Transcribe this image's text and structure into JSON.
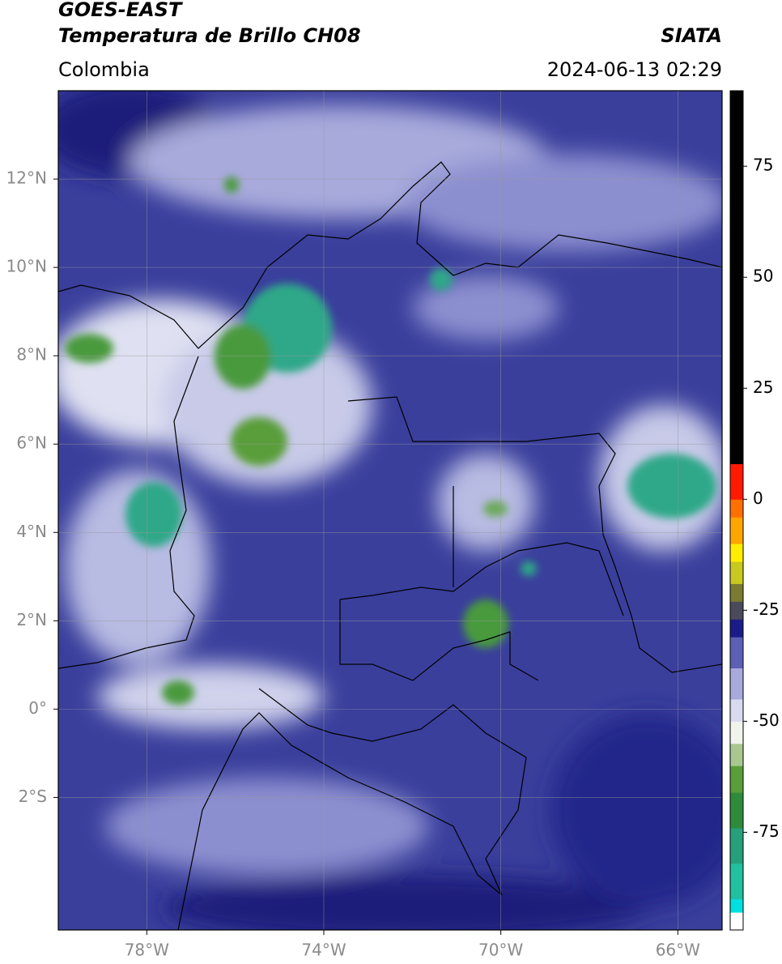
{
  "header": {
    "title_line1": "GOES-EAST",
    "title_line2": "Temperatura de Brillo CH08",
    "source": "SIATA",
    "region": "Colombia",
    "datetime": "2024-06-13 02:29"
  },
  "map": {
    "xlim": [
      -80,
      -65
    ],
    "ylim": [
      -5,
      14
    ],
    "grid": true,
    "xticks": [
      {
        "value": -78,
        "label": "78°W"
      },
      {
        "value": -74,
        "label": "74°W"
      },
      {
        "value": -70,
        "label": "70°W"
      },
      {
        "value": -66,
        "label": "66°W"
      }
    ],
    "yticks": [
      {
        "value": 12,
        "label": "12°N"
      },
      {
        "value": 10,
        "label": "10°N"
      },
      {
        "value": 8,
        "label": "8°N"
      },
      {
        "value": 6,
        "label": "6°N"
      },
      {
        "value": 4,
        "label": "4°N"
      },
      {
        "value": 2,
        "label": "2°N"
      },
      {
        "value": 0,
        "label": "0°"
      },
      {
        "value": -2,
        "label": "2°S"
      }
    ]
  },
  "colorbar": {
    "lim": [
      -97,
      92
    ],
    "ticks": [
      75,
      50,
      25,
      0,
      -25,
      -50,
      -75
    ],
    "segments": [
      {
        "from": -97,
        "to": -93,
        "color": "#ffffff"
      },
      {
        "from": -93,
        "to": -90,
        "color": "#00e0e0"
      },
      {
        "from": -90,
        "to": -82,
        "color": "#20c0a0"
      },
      {
        "from": -82,
        "to": -74,
        "color": "#26a07a"
      },
      {
        "from": -74,
        "to": -66,
        "color": "#2e8b3a"
      },
      {
        "from": -66,
        "to": -60,
        "color": "#5a9e3a"
      },
      {
        "from": -60,
        "to": -55,
        "color": "#a8c890"
      },
      {
        "from": -55,
        "to": -50,
        "color": "#f0f4ec"
      },
      {
        "from": -50,
        "to": -45,
        "color": "#d8daf0"
      },
      {
        "from": -45,
        "to": -38,
        "color": "#a8aadc"
      },
      {
        "from": -38,
        "to": -31,
        "color": "#5c60b4"
      },
      {
        "from": -31,
        "to": -27,
        "color": "#1c1c88"
      },
      {
        "from": -27,
        "to": -23,
        "color": "#4a4a5a"
      },
      {
        "from": -23,
        "to": -19,
        "color": "#7a7a30"
      },
      {
        "from": -19,
        "to": -14,
        "color": "#c8c820"
      },
      {
        "from": -14,
        "to": -10,
        "color": "#ffee00"
      },
      {
        "from": -10,
        "to": -4,
        "color": "#ffa500"
      },
      {
        "from": -4,
        "to": 0,
        "color": "#ff7000"
      },
      {
        "from": 0,
        "to": 8,
        "color": "#ff1a00"
      },
      {
        "from": 8,
        "to": 92,
        "color": "#000000"
      }
    ]
  }
}
